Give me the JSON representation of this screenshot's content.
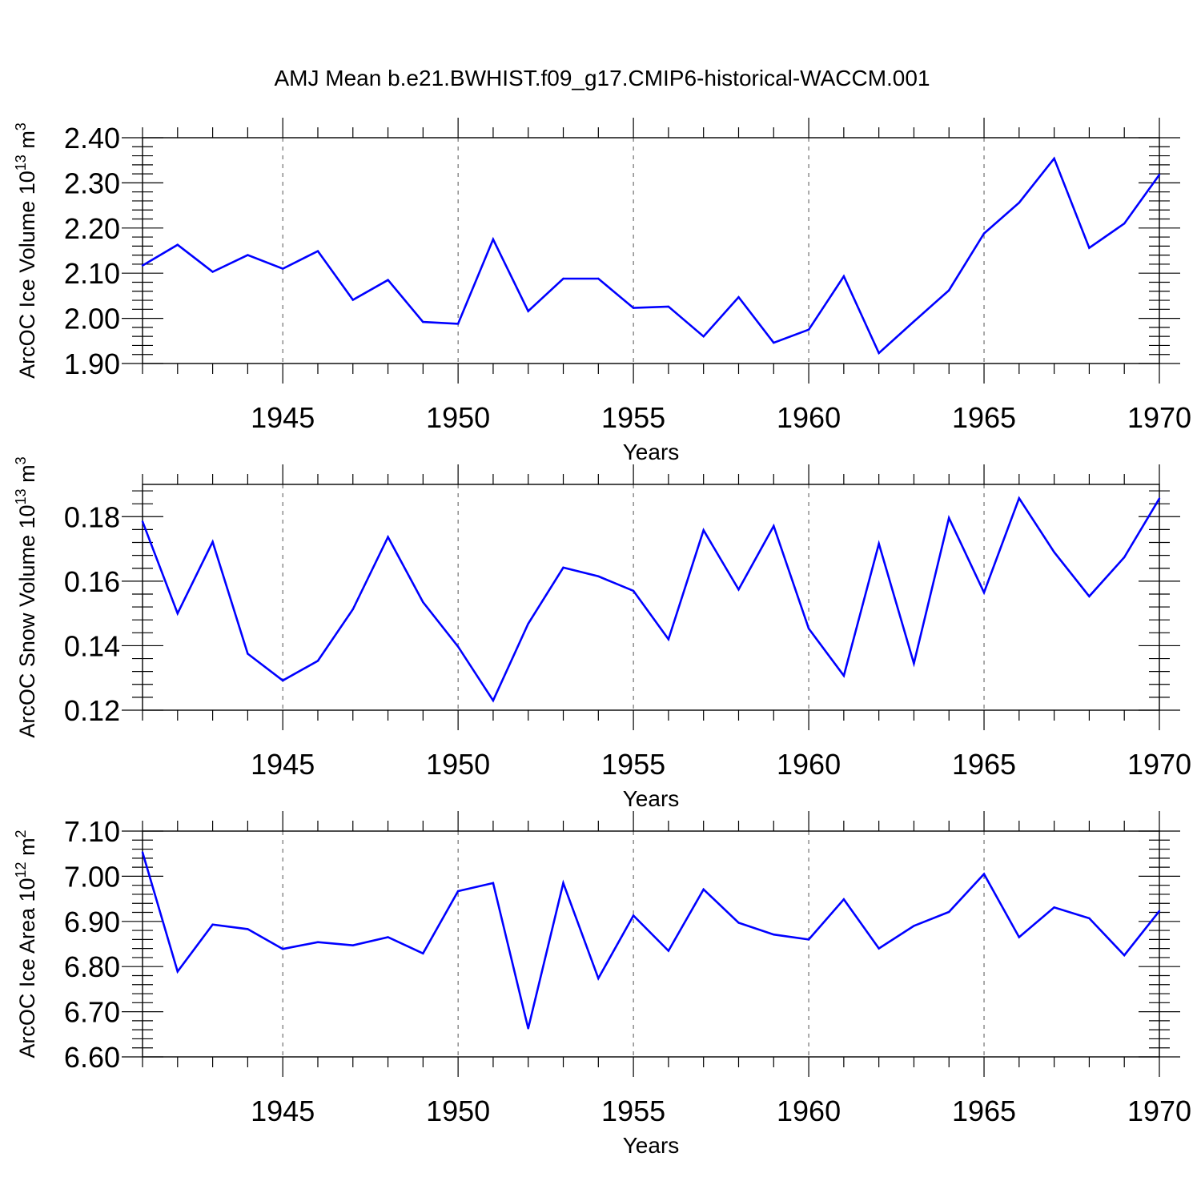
{
  "figure_title": "AMJ Mean b.e21.BWHIST.f09_g17.CMIP6-historical-WACCM.001",
  "colors": {
    "line": "#0000ff",
    "axes": "#000000",
    "grid": "#555555"
  },
  "chart_data": [
    {
      "type": "line",
      "ylabel": "ArcOC Ice Volume 10",
      "ylabel_exp": "13",
      "ylabel_unit": " m",
      "ylabel_unit_exp": "3",
      "xlabel": "Years",
      "xlim": [
        1941,
        1970
      ],
      "ylim": [
        1.9,
        2.4
      ],
      "xticks": [
        1945,
        1950,
        1955,
        1960,
        1965,
        1970
      ],
      "xtick_labels": [
        "1945",
        "1950",
        "1955",
        "1960",
        "1965",
        "1970"
      ],
      "yticks": [
        1.9,
        2.0,
        2.1,
        2.2,
        2.3,
        2.4
      ],
      "ytick_labels": [
        "1.90",
        "2.00",
        "2.10",
        "2.20",
        "2.30",
        "2.40"
      ],
      "grid": "vertical dashed at major x ticks",
      "x": [
        1941,
        1942,
        1943,
        1944,
        1945,
        1946,
        1947,
        1948,
        1949,
        1950,
        1951,
        1952,
        1953,
        1954,
        1955,
        1956,
        1957,
        1958,
        1959,
        1960,
        1961,
        1962,
        1963,
        1964,
        1965,
        1966,
        1967,
        1968,
        1969,
        1970
      ],
      "values": [
        2.117,
        2.163,
        2.103,
        2.14,
        2.11,
        2.149,
        2.041,
        2.085,
        1.992,
        1.988,
        2.175,
        2.016,
        2.088,
        2.088,
        2.023,
        2.026,
        1.96,
        2.047,
        1.946,
        1.975,
        2.093,
        1.923,
        1.993,
        2.062,
        2.188,
        2.256,
        2.354,
        2.156,
        2.21,
        2.318
      ]
    },
    {
      "type": "line",
      "ylabel": "ArcOC Snow Volume 10",
      "ylabel_exp": "13",
      "ylabel_unit": " m",
      "ylabel_unit_exp": "3",
      "xlabel": "Years",
      "xlim": [
        1941,
        1970
      ],
      "ylim": [
        0.12,
        0.19
      ],
      "xticks": [
        1945,
        1950,
        1955,
        1960,
        1965,
        1970
      ],
      "xtick_labels": [
        "1945",
        "1950",
        "1955",
        "1960",
        "1965",
        "1970"
      ],
      "yticks": [
        0.12,
        0.14,
        0.16,
        0.18
      ],
      "ytick_labels": [
        "0.12",
        "0.14",
        "0.16",
        "0.18"
      ],
      "grid": "vertical dashed at major x ticks",
      "x": [
        1941,
        1942,
        1943,
        1944,
        1945,
        1946,
        1947,
        1948,
        1949,
        1950,
        1951,
        1952,
        1953,
        1954,
        1955,
        1956,
        1957,
        1958,
        1959,
        1960,
        1961,
        1962,
        1963,
        1964,
        1965,
        1966,
        1967,
        1968,
        1969,
        1970
      ],
      "values": [
        0.1785,
        0.15,
        0.1722,
        0.1375,
        0.1292,
        0.1353,
        0.1513,
        0.1737,
        0.1535,
        0.1397,
        0.123,
        0.1468,
        0.1642,
        0.1615,
        0.157,
        0.142,
        0.1758,
        0.1574,
        0.1771,
        0.1453,
        0.1307,
        0.1716,
        0.1345,
        0.1796,
        0.1565,
        0.1857,
        0.169,
        0.1553,
        0.1674,
        0.1856
      ]
    },
    {
      "type": "line",
      "ylabel": "ArcOC Ice Area 10",
      "ylabel_exp": "12",
      "ylabel_unit": " m",
      "ylabel_unit_exp": "2",
      "xlabel": "Years",
      "xlim": [
        1941,
        1970
      ],
      "ylim": [
        6.6,
        7.1
      ],
      "xticks": [
        1945,
        1950,
        1955,
        1960,
        1965,
        1970
      ],
      "xtick_labels": [
        "1945",
        "1950",
        "1955",
        "1960",
        "1965",
        "1970"
      ],
      "yticks": [
        6.6,
        6.7,
        6.8,
        6.9,
        7.0,
        7.1
      ],
      "ytick_labels": [
        "6.60",
        "6.70",
        "6.80",
        "6.90",
        "7.00",
        "7.10"
      ],
      "grid": "vertical dashed at major x ticks",
      "x": [
        1941,
        1942,
        1943,
        1944,
        1945,
        1946,
        1947,
        1948,
        1949,
        1950,
        1951,
        1952,
        1953,
        1954,
        1955,
        1956,
        1957,
        1958,
        1959,
        1960,
        1961,
        1962,
        1963,
        1964,
        1965,
        1966,
        1967,
        1968,
        1969,
        1970
      ],
      "values": [
        7.053,
        6.789,
        6.893,
        6.883,
        6.839,
        6.854,
        6.847,
        6.865,
        6.829,
        6.967,
        6.985,
        6.663,
        6.985,
        6.774,
        6.913,
        6.835,
        6.971,
        6.897,
        6.871,
        6.86,
        6.949,
        6.84,
        6.89,
        6.921,
        7.005,
        6.865,
        6.931,
        6.907,
        6.825,
        6.923
      ]
    }
  ]
}
